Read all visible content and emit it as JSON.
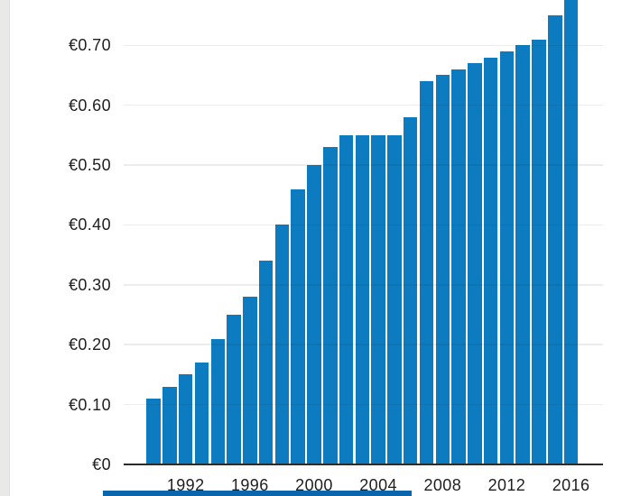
{
  "chart_data": {
    "type": "bar",
    "x": [
      1990,
      1991,
      1992,
      1993,
      1994,
      1995,
      1996,
      1997,
      1998,
      1999,
      2000,
      2001,
      2002,
      2003,
      2004,
      2005,
      2006,
      2007,
      2008,
      2009,
      2010,
      2011,
      2012,
      2013,
      2014,
      2015,
      2016
    ],
    "values": [
      0.11,
      0.13,
      0.15,
      0.17,
      0.21,
      0.25,
      0.28,
      0.34,
      0.4,
      0.46,
      0.5,
      0.53,
      0.55,
      0.55,
      0.55,
      0.55,
      0.58,
      0.64,
      0.65,
      0.66,
      0.67,
      0.68,
      0.69,
      0.7,
      0.71,
      0.75,
      0.78
    ],
    "currency": "€",
    "y_ticks": [
      {
        "value": 0.0,
        "label": "€0"
      },
      {
        "value": 0.1,
        "label": "€0.10"
      },
      {
        "value": 0.2,
        "label": "€0.20"
      },
      {
        "value": 0.3,
        "label": "€0.30"
      },
      {
        "value": 0.4,
        "label": "€0.40"
      },
      {
        "value": 0.5,
        "label": "€0.50"
      },
      {
        "value": 0.6,
        "label": "€0.60"
      },
      {
        "value": 0.7,
        "label": "€0.70"
      }
    ],
    "x_ticks": [
      {
        "year": 1992,
        "label": "1992"
      },
      {
        "year": 1996,
        "label": "1996"
      },
      {
        "year": 2000,
        "label": "2000"
      },
      {
        "year": 2004,
        "label": "2004"
      },
      {
        "year": 2008,
        "label": "2008"
      },
      {
        "year": 2012,
        "label": "2012"
      },
      {
        "year": 2016,
        "label": "2016"
      }
    ],
    "ylim_visible": [
      0,
      0.775
    ],
    "grid": true,
    "gridlines_over_bars": true,
    "clipped_years": [
      2016
    ],
    "bar_color": "#0c7bbf",
    "axis_color": "#2b2b2b",
    "gridline_rgba": "rgba(40,40,40,0.09)",
    "label_color": "#1f1f1f"
  },
  "ui": {
    "left_gutter_color": "#e9e9e7",
    "bottom_strip_color": "#0a65ad"
  }
}
